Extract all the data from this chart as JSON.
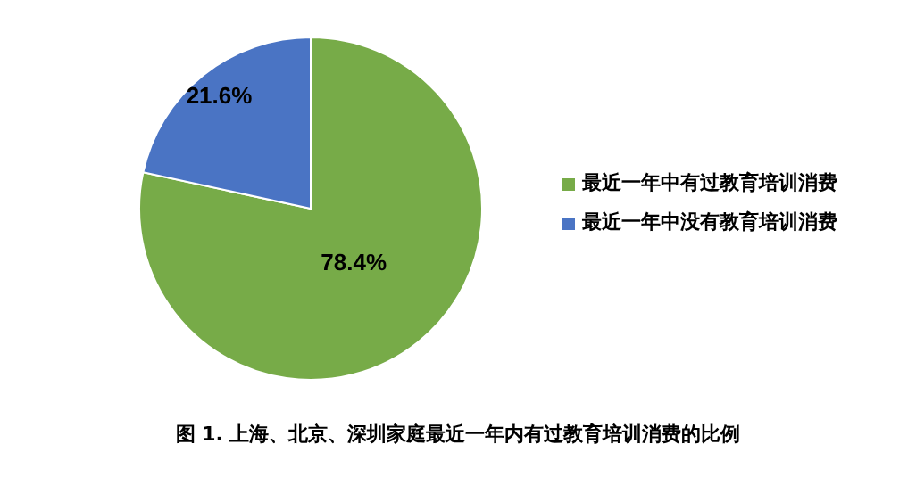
{
  "chart_data": {
    "type": "pie",
    "title": "图 1. 上海、北京、深圳家庭最近一年内有过教育培训消费的比例",
    "categories": [
      "最近一年中有过教育培训消费",
      "最近一年中没有教育培训消费"
    ],
    "values": [
      78.4,
      21.6
    ],
    "colors": [
      "#77ab48",
      "#4a74c4"
    ],
    "value_labels": [
      "78.4%",
      "21.6%"
    ],
    "legend": "right"
  }
}
